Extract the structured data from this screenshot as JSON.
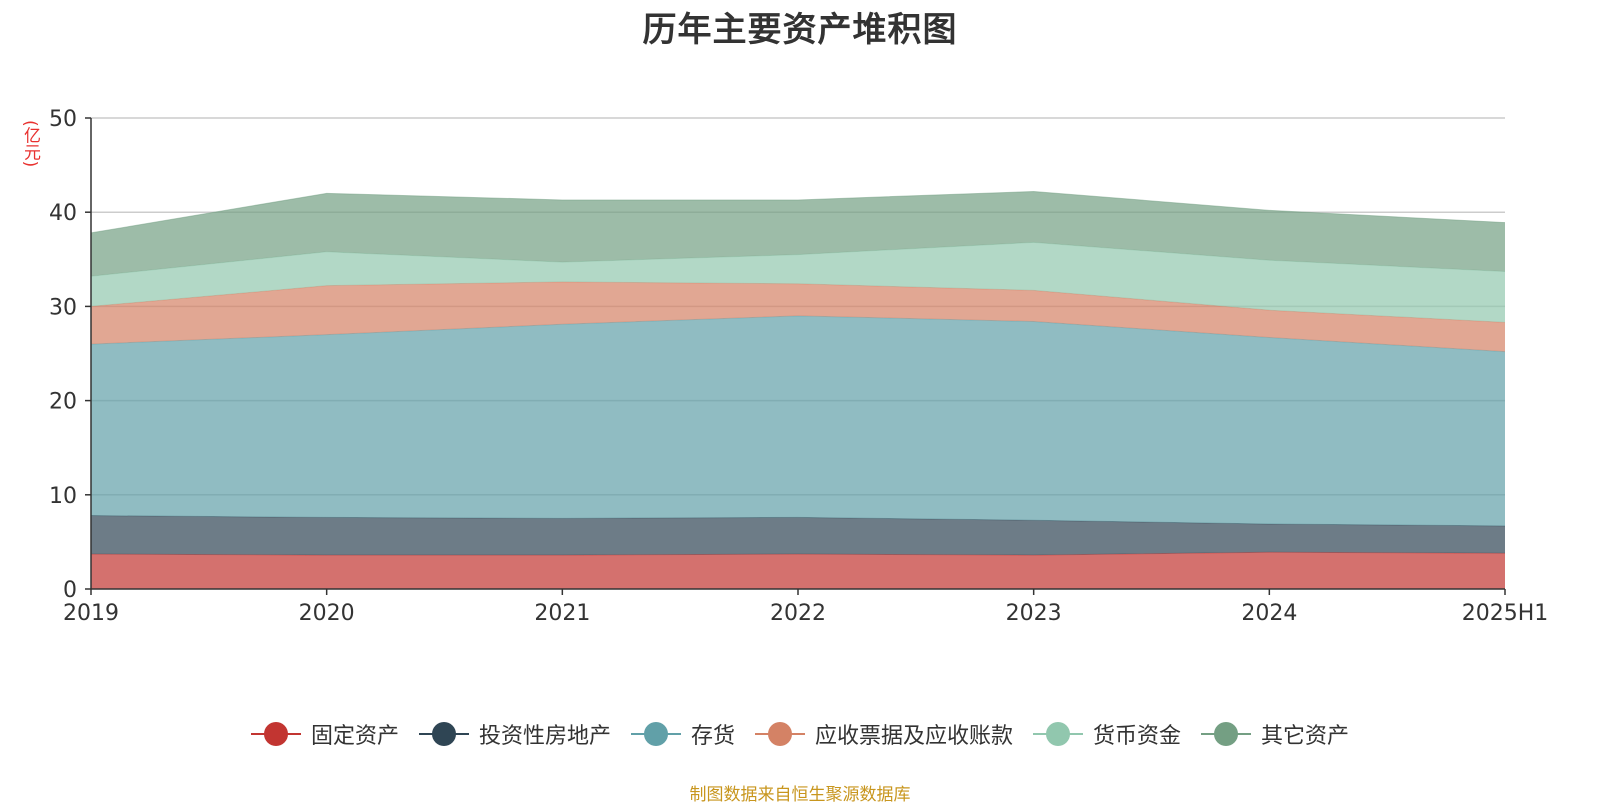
{
  "chart_data": {
    "type": "area",
    "stacked": true,
    "title": "历年主要资产堆积图",
    "y_unit_label": "(亿元)",
    "ylim": [
      0,
      50
    ],
    "yticks": [
      0,
      10,
      20,
      30,
      40,
      50
    ],
    "grid": true,
    "legend_position": "bottom",
    "categories": [
      "2019",
      "2020",
      "2021",
      "2022",
      "2023",
      "2024",
      "2025H1"
    ],
    "series": [
      {
        "name": "固定资产",
        "color": "#c23531",
        "values": [
          3.7,
          3.6,
          3.6,
          3.7,
          3.6,
          3.9,
          3.8
        ]
      },
      {
        "name": "投资性房地产",
        "color": "#2f4554",
        "values": [
          4.1,
          4.0,
          3.9,
          3.9,
          3.7,
          3.0,
          2.9
        ]
      },
      {
        "name": "存货",
        "color": "#61a0a8",
        "values": [
          18.2,
          19.4,
          20.6,
          21.4,
          21.1,
          19.8,
          18.5
        ]
      },
      {
        "name": "应收票据及应收账款",
        "color": "#d48265",
        "values": [
          4.0,
          5.2,
          4.5,
          3.4,
          3.3,
          2.9,
          3.1
        ]
      },
      {
        "name": "货币资金",
        "color": "#91c7ae",
        "values": [
          3.2,
          3.6,
          2.1,
          3.1,
          5.1,
          5.3,
          5.4
        ]
      },
      {
        "name": "其它资产",
        "color": "#749f83",
        "values": [
          4.6,
          6.2,
          6.6,
          5.8,
          5.4,
          5.3,
          5.2
        ]
      }
    ]
  },
  "source_note": "制图数据来自恒生聚源数据库"
}
